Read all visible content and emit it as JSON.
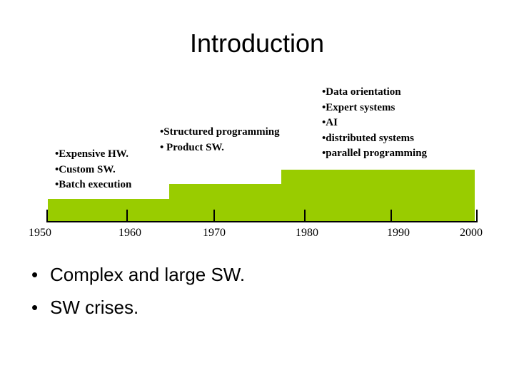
{
  "title": "Introduction",
  "timeline": {
    "years": [
      "1950",
      "1960",
      "1970",
      "1980",
      "1990",
      "2000"
    ],
    "eras": [
      {
        "items": [
          "•Expensive HW.",
          "•Custom SW.",
          "•Batch execution"
        ]
      },
      {
        "items": [
          "•Structured programming",
          "• Product SW."
        ]
      },
      {
        "items": [
          "•Data orientation",
          "•Expert systems",
          "•AI",
          "•distributed systems",
          "•parallel programming"
        ]
      }
    ],
    "bar_color": "#99cc00"
  },
  "bullets": [
    {
      "mark": "•",
      "text": "Complex and large SW."
    },
    {
      "mark": "•",
      "text": "SW crises."
    }
  ]
}
